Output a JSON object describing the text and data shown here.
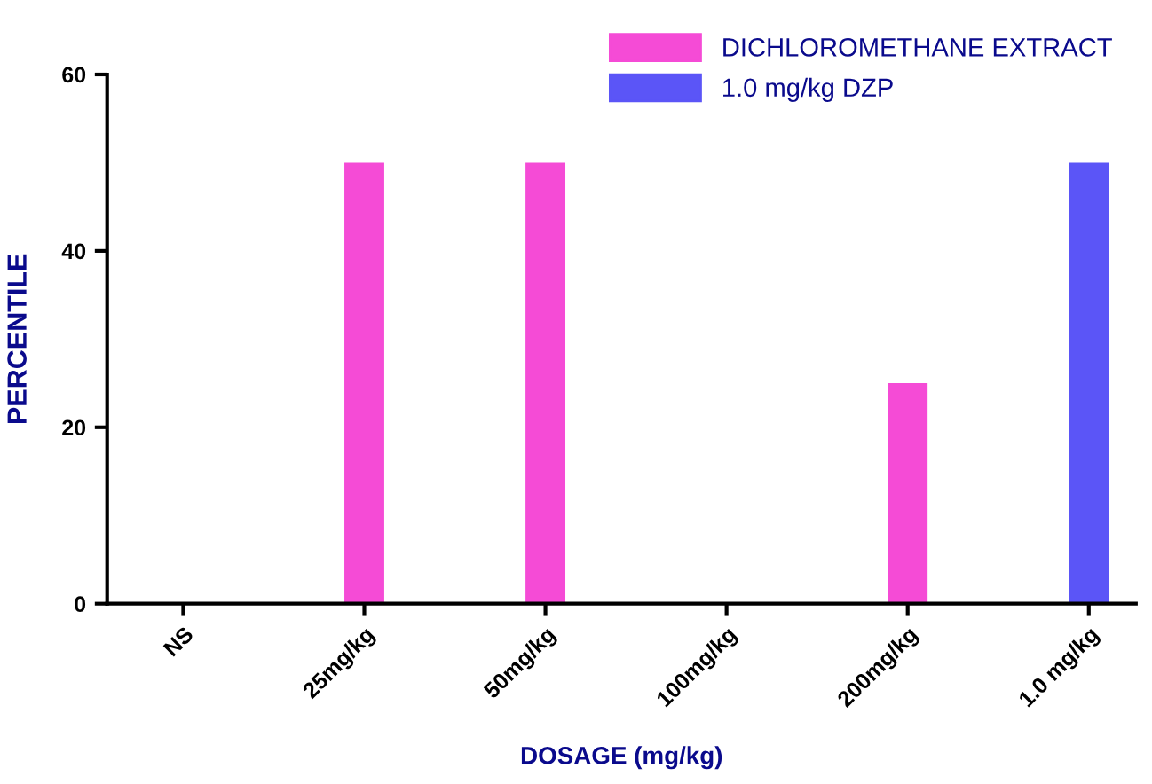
{
  "chart_data": {
    "type": "bar",
    "xlabel": "DOSAGE (mg/kg)",
    "ylabel": "PERCENTILE",
    "categories": [
      "NS",
      "25mg/kg",
      "50mg/kg",
      "100mg/kg",
      "200mg/kg",
      "1.0 mg/kg"
    ],
    "series": [
      {
        "name": "DICHLOROMETHANE EXTRACT",
        "color": "#f54bd6",
        "values": [
          0,
          50,
          50,
          0,
          25,
          null
        ]
      },
      {
        "name": "1.0 mg/kg DZP",
        "color": "#5b55f7",
        "values": [
          null,
          null,
          null,
          null,
          null,
          50
        ]
      }
    ],
    "ylim": [
      0,
      60
    ],
    "yticks": [
      0,
      20,
      40,
      60
    ],
    "grid": false,
    "legend": "top right"
  }
}
